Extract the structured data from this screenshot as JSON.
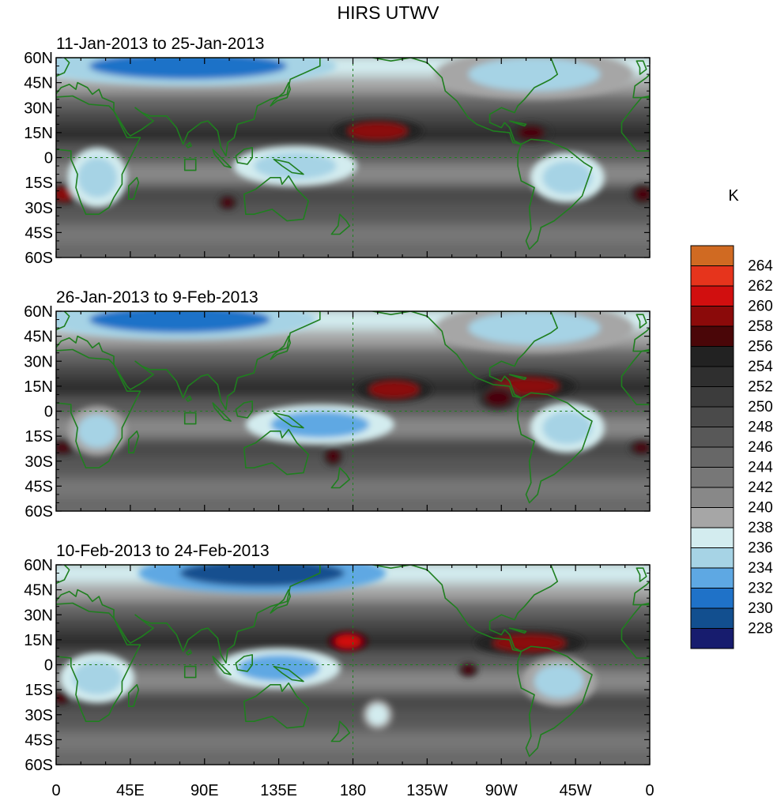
{
  "figure": {
    "title": "HIRS UTWV",
    "panels": [
      {
        "subtitle": "11-Jan-2013 to 25-Jan-2013"
      },
      {
        "subtitle": "26-Jan-2013 to 9-Feb-2013"
      },
      {
        "subtitle": "10-Feb-2013 to 24-Feb-2013"
      }
    ],
    "lat_labels": [
      "60N",
      "45N",
      "30N",
      "15N",
      "0",
      "15S",
      "30S",
      "45S",
      "60S"
    ],
    "lon_labels": [
      "0",
      "45E",
      "90E",
      "135E",
      "180",
      "135W",
      "90W",
      "45W",
      "0"
    ],
    "colorbar": {
      "units": "K",
      "labels": [
        "264",
        "262",
        "260",
        "258",
        "256",
        "254",
        "252",
        "250",
        "248",
        "246",
        "244",
        "242",
        "240",
        "238",
        "236",
        "234",
        "232",
        "230",
        "228"
      ],
      "colors": [
        "#d06a22",
        "#e6341c",
        "#d10f0f",
        "#8b0a0a",
        "#4a0608",
        "#222222",
        "#2f2f2f",
        "#3c3c3c",
        "#4a4a4a",
        "#585858",
        "#676767",
        "#777777",
        "#888888",
        "#a6a6a6",
        "#d3ecef",
        "#a6d3e5",
        "#5ea8e3",
        "#1f72c8",
        "#124f8f",
        "#171c6e"
      ]
    },
    "coastline_color": "#1f7f1f"
  },
  "chart_data": {
    "type": "heatmap",
    "title": "HIRS UTWV",
    "units": "K",
    "lat_range": [
      -60,
      60
    ],
    "lon_range": [
      0,
      360
    ],
    "levels": [
      228,
      230,
      232,
      234,
      236,
      238,
      240,
      242,
      244,
      246,
      248,
      250,
      252,
      254,
      256,
      258,
      260,
      262,
      264
    ],
    "panels": [
      {
        "label": "11-Jan-2013 to 25-Jan-2013",
        "features": [
          {
            "kind": "max",
            "lon": 195,
            "lat": 16,
            "value": 259,
            "dlon": 18,
            "dlat": 5
          },
          {
            "kind": "max",
            "lon": 288,
            "lat": 15,
            "value": 257,
            "dlon": 8,
            "dlat": 4
          },
          {
            "kind": "max",
            "lon": 5,
            "lat": -22,
            "value": 258,
            "dlon": 6,
            "dlat": 4
          },
          {
            "kind": "max",
            "lon": 356,
            "lat": -22,
            "value": 257,
            "dlon": 5,
            "dlat": 4
          },
          {
            "kind": "max",
            "lon": 104,
            "lat": -27,
            "value": 257,
            "dlon": 4,
            "dlat": 3
          },
          {
            "kind": "min",
            "lon": 25,
            "lat": -12,
            "value": 234,
            "dlon": 12,
            "dlat": 12
          },
          {
            "kind": "min",
            "lon": 145,
            "lat": -5,
            "value": 234,
            "dlon": 25,
            "dlat": 8
          },
          {
            "kind": "min",
            "lon": 310,
            "lat": -12,
            "value": 234,
            "dlon": 15,
            "dlat": 10
          },
          {
            "kind": "min",
            "lon": 80,
            "lat": 55,
            "value": 231,
            "dlon": 60,
            "dlat": 8
          },
          {
            "kind": "min",
            "lon": 290,
            "lat": 50,
            "value": 235,
            "dlon": 40,
            "dlat": 10
          }
        ]
      },
      {
        "label": "26-Jan-2013 to 9-Feb-2013",
        "features": [
          {
            "kind": "max",
            "lon": 205,
            "lat": 13,
            "value": 259,
            "dlon": 15,
            "dlat": 5
          },
          {
            "kind": "max",
            "lon": 285,
            "lat": 15,
            "value": 258,
            "dlon": 20,
            "dlat": 5
          },
          {
            "kind": "max",
            "lon": 268,
            "lat": 8,
            "value": 257,
            "dlon": 8,
            "dlat": 5
          },
          {
            "kind": "max",
            "lon": 4,
            "lat": -22,
            "value": 257,
            "dlon": 5,
            "dlat": 3
          },
          {
            "kind": "max",
            "lon": 355,
            "lat": -22,
            "value": 257,
            "dlon": 5,
            "dlat": 3
          },
          {
            "kind": "max",
            "lon": 168,
            "lat": -27,
            "value": 257,
            "dlon": 4,
            "dlat": 4
          },
          {
            "kind": "min",
            "lon": 25,
            "lat": -12,
            "value": 235,
            "dlon": 12,
            "dlat": 10
          },
          {
            "kind": "min",
            "lon": 160,
            "lat": -8,
            "value": 233,
            "dlon": 30,
            "dlat": 8
          },
          {
            "kind": "min",
            "lon": 310,
            "lat": -10,
            "value": 234,
            "dlon": 15,
            "dlat": 10
          },
          {
            "kind": "min",
            "lon": 75,
            "lat": 55,
            "value": 231,
            "dlon": 55,
            "dlat": 8
          },
          {
            "kind": "min",
            "lon": 290,
            "lat": 50,
            "value": 235,
            "dlon": 40,
            "dlat": 10
          }
        ]
      },
      {
        "label": "10-Feb-2013 to 24-Feb-2013",
        "features": [
          {
            "kind": "max",
            "lon": 177,
            "lat": 14,
            "value": 261,
            "dlon": 8,
            "dlat": 4
          },
          {
            "kind": "max",
            "lon": 287,
            "lat": 13,
            "value": 258,
            "dlon": 22,
            "dlat": 5
          },
          {
            "kind": "max",
            "lon": 250,
            "lat": -3,
            "value": 257,
            "dlon": 4,
            "dlat": 3
          },
          {
            "kind": "max",
            "lon": 3,
            "lat": -20,
            "value": 256,
            "dlon": 4,
            "dlat": 3
          },
          {
            "kind": "min",
            "lon": 25,
            "lat": -8,
            "value": 234,
            "dlon": 15,
            "dlat": 10
          },
          {
            "kind": "min",
            "lon": 135,
            "lat": -2,
            "value": 233,
            "dlon": 25,
            "dlat": 8
          },
          {
            "kind": "min",
            "lon": 305,
            "lat": -10,
            "value": 235,
            "dlon": 15,
            "dlat": 10
          },
          {
            "kind": "min",
            "lon": 125,
            "lat": 55,
            "value": 229,
            "dlon": 50,
            "dlat": 8
          },
          {
            "kind": "min",
            "lon": 195,
            "lat": -30,
            "value": 236,
            "dlon": 6,
            "dlat": 6
          }
        ]
      }
    ]
  }
}
